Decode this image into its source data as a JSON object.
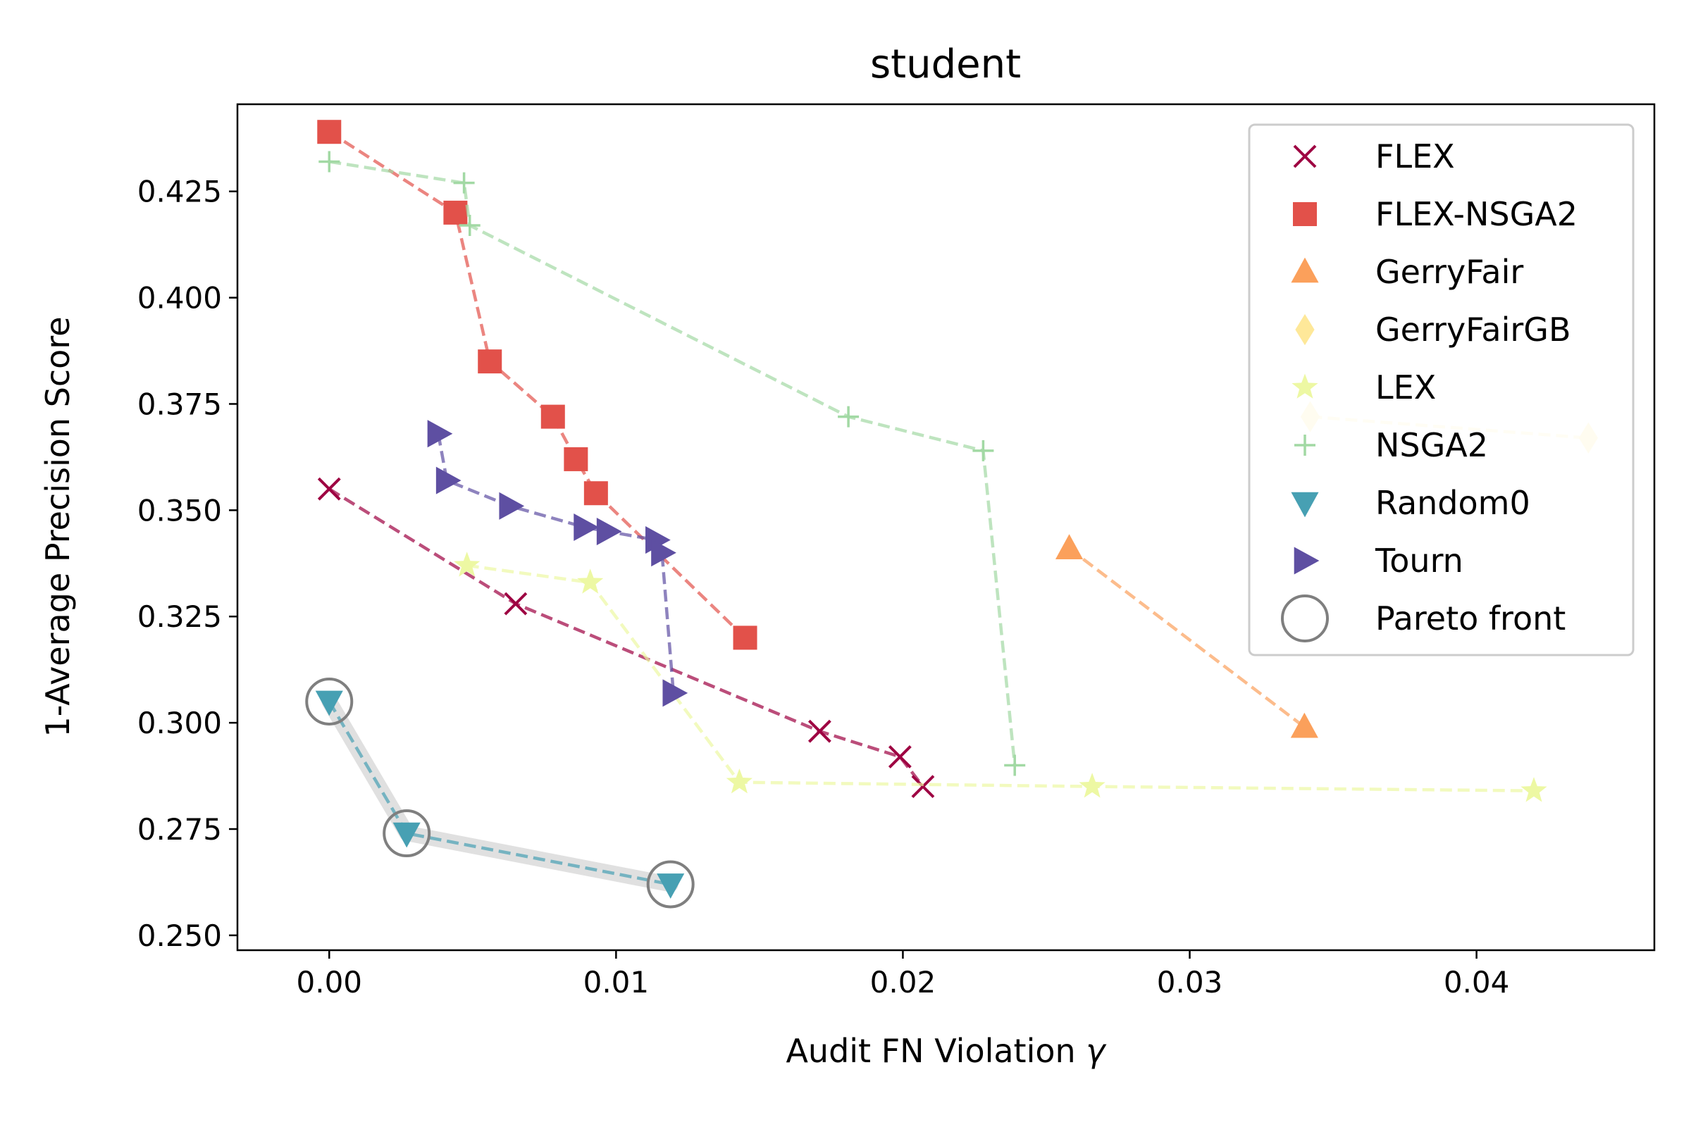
{
  "chart_data": {
    "type": "scatter",
    "title": "student",
    "xlabel": "Audit FN Violation",
    "xlabel_symbol": "γ",
    "ylabel": "1-Average Precision Score",
    "xlim": [
      -0.0032,
      0.0462
    ],
    "ylim": [
      0.2465,
      0.4455
    ],
    "xticks": [
      0.0,
      0.01,
      0.02,
      0.03,
      0.04
    ],
    "xtick_labels": [
      "0.00",
      "0.01",
      "0.02",
      "0.03",
      "0.04"
    ],
    "yticks": [
      0.25,
      0.275,
      0.3,
      0.325,
      0.35,
      0.375,
      0.4,
      0.425
    ],
    "ytick_labels": [
      "0.250",
      "0.275",
      "0.300",
      "0.325",
      "0.350",
      "0.375",
      "0.400",
      "0.425"
    ],
    "grid": false,
    "legend_position": "top-right",
    "series": [
      {
        "name": "FLEX",
        "marker": "x",
        "color": "#9e0142",
        "x": [
          0.0,
          0.0065,
          0.0171,
          0.0199,
          0.0207
        ],
        "y": [
          0.355,
          0.328,
          0.298,
          0.292,
          0.285
        ]
      },
      {
        "name": "FLEX-NSGA2",
        "marker": "square",
        "color": "#e2514a",
        "x": [
          0.0,
          0.0044,
          0.0056,
          0.0078,
          0.0086,
          0.0093,
          0.0145
        ],
        "y": [
          0.439,
          0.42,
          0.385,
          0.372,
          0.362,
          0.354,
          0.32
        ]
      },
      {
        "name": "GerryFair",
        "marker": "triangle-up",
        "color": "#fba05b",
        "x": [
          0.0258,
          0.034
        ],
        "y": [
          0.341,
          0.299
        ]
      },
      {
        "name": "GerryFairGB",
        "marker": "diamond",
        "color": "#fee899",
        "x": [
          0.0342,
          0.0439
        ],
        "y": [
          0.372,
          0.367
        ]
      },
      {
        "name": "LEX",
        "marker": "star",
        "color": "#edf8a3",
        "x": [
          0.0048,
          0.0091,
          0.0143,
          0.0266,
          0.042
        ],
        "y": [
          0.337,
          0.333,
          0.286,
          0.285,
          0.284
        ]
      },
      {
        "name": "NSGA2",
        "marker": "plus",
        "color": "#a2d9a4",
        "x": [
          0.0,
          0.0047,
          0.0049,
          0.0181,
          0.0228,
          0.0239
        ],
        "y": [
          0.432,
          0.427,
          0.417,
          0.372,
          0.364,
          0.29
        ]
      },
      {
        "name": "Random0",
        "marker": "triangle-down",
        "color": "#47a0b3",
        "x": [
          0.0,
          0.0027,
          0.0119
        ],
        "y": [
          0.305,
          0.274,
          0.262
        ]
      },
      {
        "name": "Tourn",
        "marker": "triangle-right",
        "color": "#5e4fa2",
        "x": [
          0.0038,
          0.0041,
          0.0063,
          0.0089,
          0.0097,
          0.0114,
          0.0116,
          0.012
        ],
        "y": [
          0.368,
          0.357,
          0.351,
          0.346,
          0.345,
          0.343,
          0.34,
          0.307
        ]
      }
    ],
    "pareto_front": {
      "name": "Pareto front",
      "x": [
        0.0,
        0.0027,
        0.0119
      ],
      "y": [
        0.305,
        0.274,
        0.262
      ]
    },
    "legend_entries": [
      "FLEX",
      "FLEX-NSGA2",
      "GerryFair",
      "GerryFairGB",
      "LEX",
      "NSGA2",
      "Random0",
      "Tourn",
      "Pareto front"
    ]
  }
}
